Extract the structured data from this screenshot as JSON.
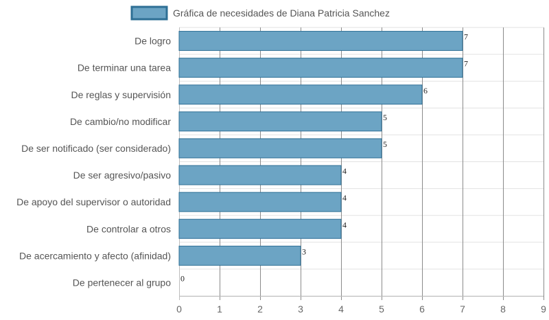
{
  "chart_data": {
    "type": "bar",
    "orientation": "horizontal",
    "categories": [
      "De logro",
      "De terminar una tarea",
      "De reglas y supervisión",
      "De cambio/no modificar",
      "De ser notificado (ser considerado)",
      "De ser agresivo/pasivo",
      "De apoyo del supervisor o autoridad",
      "De controlar a otros",
      "De acercamiento y afecto (afinidad)",
      "De pertenecer al grupo"
    ],
    "series": [
      {
        "name": "Gráfica de necesidades de Diana Patricia Sanchez",
        "values": [
          7,
          7,
          6,
          5,
          5,
          4,
          4,
          4,
          3,
          0
        ],
        "color": "#6ca4c4",
        "border_color": "#2e6f95"
      }
    ],
    "xlim": [
      0,
      9
    ],
    "xticks": [
      0,
      1,
      2,
      3,
      4,
      5,
      6,
      7,
      8,
      9
    ],
    "grid": true,
    "legend_position": "top-center",
    "show_value_labels": true
  },
  "colors": {
    "grid_major": "#8a8a8a",
    "grid_minor": "#e2e2e2"
  }
}
